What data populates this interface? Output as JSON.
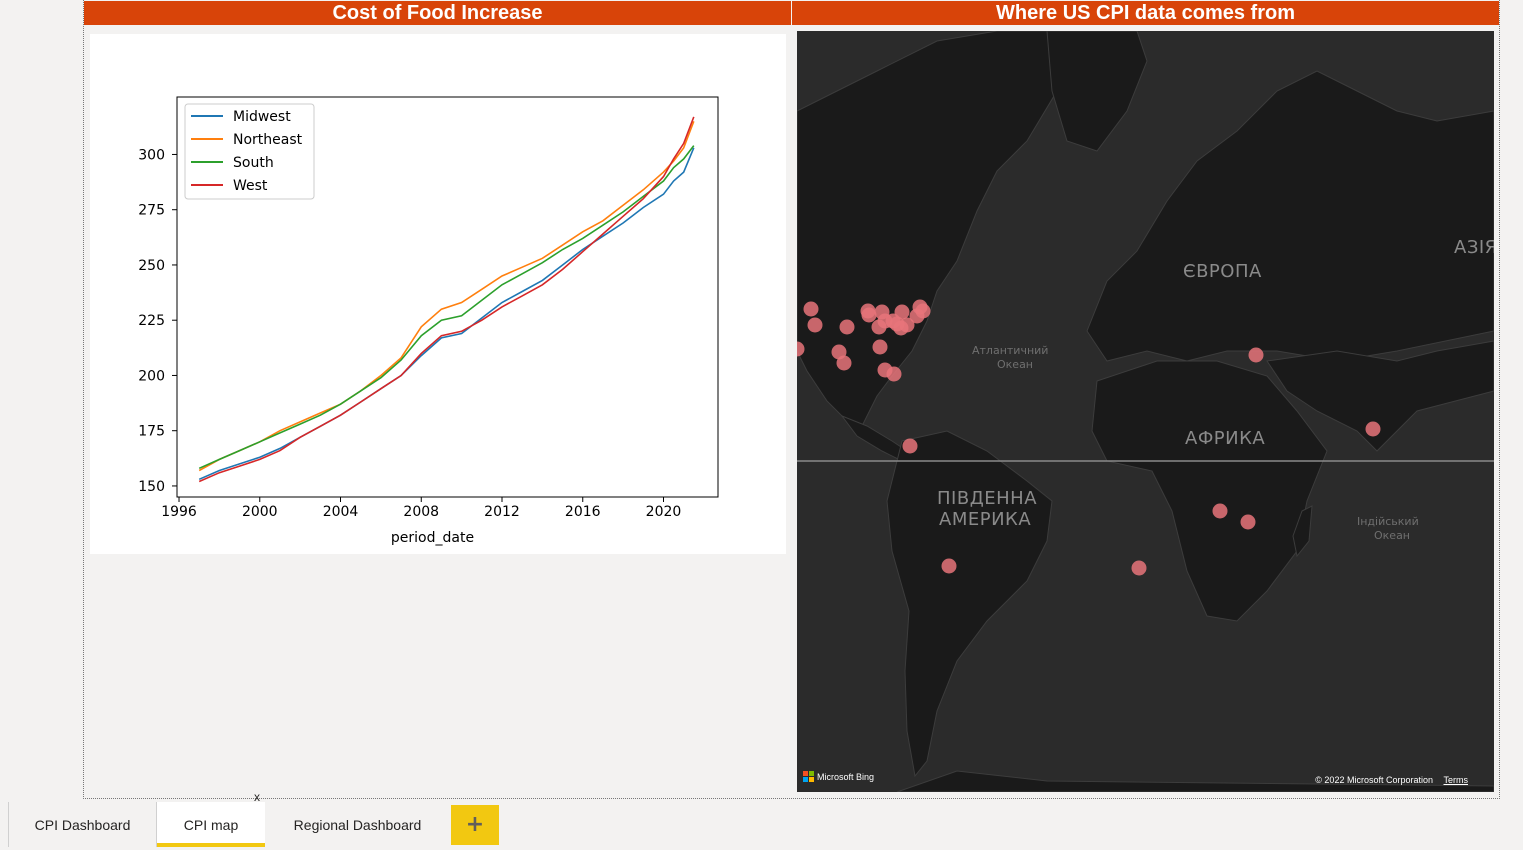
{
  "headers": {
    "food": "Cost of Food Increase",
    "map": "Where US CPI data comes from"
  },
  "chart_data": {
    "type": "line",
    "title": "",
    "xlabel": "period_date",
    "ylabel": "",
    "xlim": [
      1995.9,
      2022.7
    ],
    "ylim": [
      145,
      326
    ],
    "xticks": [
      1996,
      2000,
      2004,
      2008,
      2012,
      2016,
      2020
    ],
    "yticks": [
      150,
      175,
      200,
      225,
      250,
      275,
      300
    ],
    "legend_position": "top-left",
    "grid": false,
    "x": [
      1997,
      1998,
      1999,
      2000,
      2001,
      2002,
      2003,
      2004,
      2005,
      2006,
      2007,
      2008,
      2009,
      2010,
      2011,
      2012,
      2013,
      2014,
      2015,
      2016,
      2017,
      2018,
      2019,
      2020,
      2020.5,
      2021,
      2021.5
    ],
    "series": [
      {
        "name": "Midwest",
        "color": "#1f77b4",
        "values": [
          153,
          157,
          160,
          163,
          167,
          172,
          177,
          182,
          188,
          194,
          200,
          209,
          217,
          219,
          226,
          233,
          238,
          243,
          250,
          257,
          263,
          269,
          276,
          282,
          288,
          292,
          303
        ]
      },
      {
        "name": "Northeast",
        "color": "#ff7f0e",
        "values": [
          157,
          162,
          166,
          170,
          175,
          179,
          183,
          187,
          193,
          200,
          208,
          222,
          230,
          233,
          239,
          245,
          249,
          253,
          259,
          265,
          270,
          277,
          284,
          292,
          297,
          303,
          315
        ]
      },
      {
        "name": "South",
        "color": "#2ca02c",
        "values": [
          158,
          162,
          166,
          170,
          174,
          178,
          182,
          187,
          193,
          199,
          207,
          218,
          225,
          227,
          234,
          241,
          246,
          251,
          257,
          262,
          268,
          274,
          281,
          288,
          294,
          298,
          304
        ]
      },
      {
        "name": "West",
        "color": "#d62728",
        "values": [
          152,
          156,
          159,
          162,
          166,
          172,
          177,
          182,
          188,
          194,
          200,
          210,
          218,
          220,
          225,
          231,
          236,
          241,
          248,
          256,
          264,
          272,
          280,
          290,
          298,
          305,
          317
        ]
      }
    ]
  },
  "map": {
    "labels": {
      "europe": "ЄВРОПА",
      "asia": "АЗІЯ",
      "africa": "АФРИКА",
      "south_america_1": "ПІВДЕННА",
      "south_america_2": "АМЕРИКА",
      "atlantic_1": "Атлантичний",
      "atlantic_2": "Океан",
      "indian_1": "Індійський",
      "indian_2": "Океан"
    },
    "marker_color": "#e8747a",
    "bing_logo": "Microsoft Bing",
    "copyright": "© 2022 Microsoft Corporation",
    "terms": "Terms"
  },
  "tabs": {
    "items": [
      "CPI Dashboard",
      "CPI map",
      "Regional Dashboard"
    ],
    "active_index": 1,
    "close_label": "x",
    "add_label": "+"
  },
  "colors": {
    "header_bg": "#d84409",
    "active_tab_accent": "#f2c811",
    "map_bg": "#2b2b2b"
  }
}
